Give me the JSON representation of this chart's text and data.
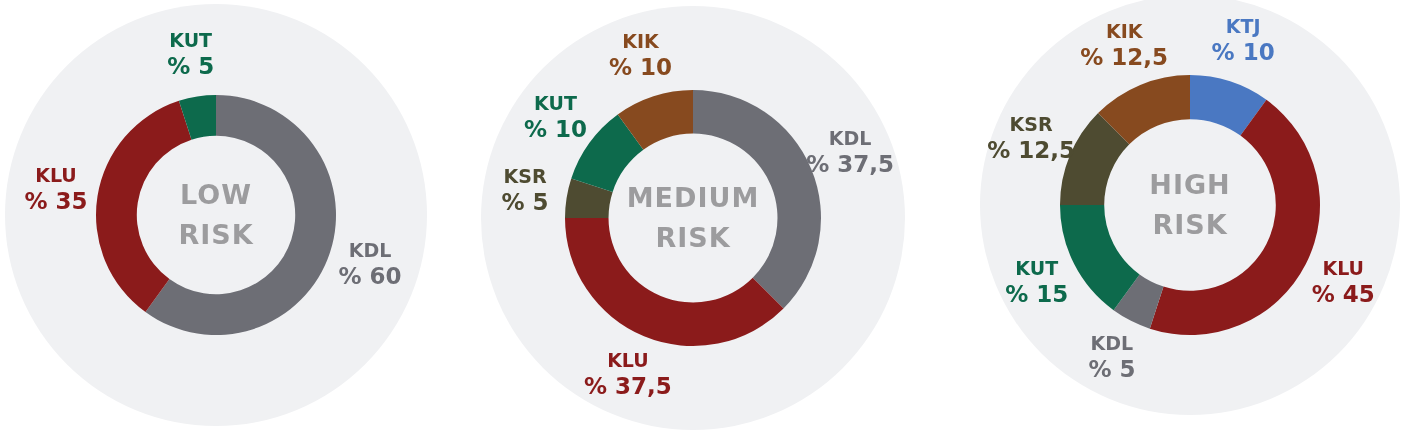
{
  "chart_data": [
    {
      "type": "donut",
      "title": "LOW RISK",
      "categories": [
        "KDL",
        "KLU",
        "KUT"
      ],
      "values": [
        60,
        35,
        5
      ],
      "value_labels": [
        "% 60",
        "% 35",
        "% 5"
      ],
      "colors": [
        "#6d6e75",
        "#8b1b1b",
        "#0d6a4c"
      ]
    },
    {
      "type": "donut",
      "title": "MEDIUM RISK",
      "categories": [
        "KDL",
        "KLU",
        "KSR",
        "KUT",
        "KIK"
      ],
      "values": [
        37.5,
        37.5,
        5,
        10,
        10
      ],
      "value_labels": [
        "% 37,5",
        "% 37,5",
        "% 5",
        "% 10",
        "% 10"
      ],
      "colors": [
        "#6d6e75",
        "#8b1b1b",
        "#4e4b31",
        "#0d6a4c",
        "#874a1f"
      ]
    },
    {
      "type": "donut",
      "title": "HIGH RISK",
      "categories": [
        "KTJ",
        "KLU",
        "KDL",
        "KUT",
        "KSR",
        "KIK"
      ],
      "values": [
        10,
        45,
        5,
        15,
        12.5,
        12.5
      ],
      "value_labels": [
        "% 10",
        "% 45",
        "% 5",
        "% 15",
        "% 12,5",
        "% 12,5"
      ],
      "colors": [
        "#4a78c2",
        "#8b1b1b",
        "#6d6e75",
        "#0d6a4c",
        "#4e4b31",
        "#874a1f"
      ]
    }
  ]
}
